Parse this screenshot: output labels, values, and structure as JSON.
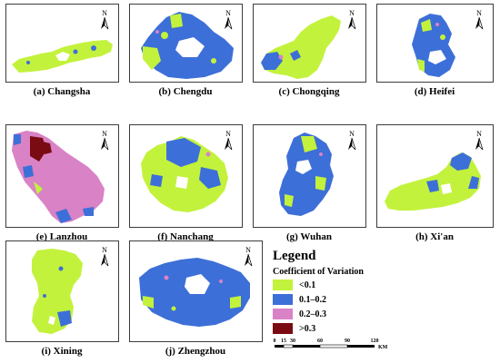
{
  "panels": [
    {
      "id": "a",
      "caption": "(a) Changsha"
    },
    {
      "id": "b",
      "caption": "(b) Chengdu"
    },
    {
      "id": "c",
      "caption": "(c) Chongqing"
    },
    {
      "id": "d",
      "caption": "(d) Heifei"
    },
    {
      "id": "e",
      "caption": "(e) Lanzhou"
    },
    {
      "id": "f",
      "caption": "(f) Nanchang"
    },
    {
      "id": "g",
      "caption": "(g) Wuhan"
    },
    {
      "id": "h",
      "caption": "(h) Xi'an"
    },
    {
      "id": "i",
      "caption": "(i) Xining"
    },
    {
      "id": "j",
      "caption": "(j) Zhengzhou"
    }
  ],
  "north_label": "N",
  "legend": {
    "title": "Legend",
    "subtitle": "Coefficient of Variation",
    "classes": [
      {
        "label": "<0.1",
        "color": "#c3f23c"
      },
      {
        "label": "0.1–0.2",
        "color": "#3d6fd8"
      },
      {
        "label": "0.2–0.3",
        "color": "#d982c6"
      },
      {
        "label": ">0.3",
        "color": "#7a0b12"
      }
    ]
  },
  "scale_bar": {
    "ticks": [
      "0",
      "15",
      "30",
      "60",
      "90",
      "120"
    ],
    "unit": "KM"
  }
}
